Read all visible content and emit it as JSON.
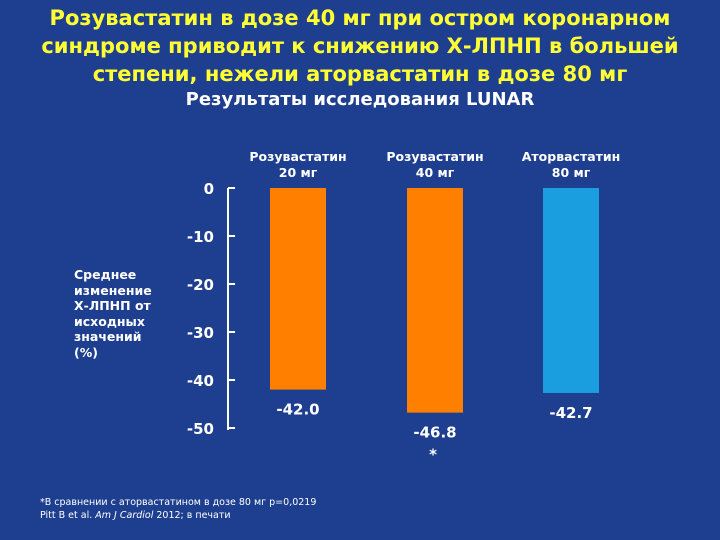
{
  "slide": {
    "title_lines": [
      "Розувастатин в дозе 40 мг при остром коронарном",
      "синдроме приводит к снижению Х-ЛПНП в большей",
      "степени, нежели аторвастатин в дозе 80 мг"
    ],
    "subtitle": "Результаты исследования LUNAR",
    "footnote": {
      "line1": "*В сравнении с аторвастатином в дозе 80 мг p=0,0219",
      "line2_author": "Pitt B et al. ",
      "line2_journal": "Am J Cardiol",
      "line2_rest": " 2012; в печати"
    }
  },
  "chart_data": {
    "type": "bar",
    "title": "Результаты исследования LUNAR",
    "ylabel_lines": [
      "Среднее",
      "изменение",
      "Х-ЛПНП от",
      "исходных",
      "значений",
      "(%)"
    ],
    "ylim": [
      -50,
      0
    ],
    "yticks": [
      0,
      -10,
      -20,
      -30,
      -40,
      -50
    ],
    "ytick_labels": [
      "0",
      "-10",
      "-20",
      "-30",
      "-40",
      "-50"
    ],
    "grid": false,
    "bars": [
      {
        "label_lines": [
          "Розувастатин",
          "20 мг"
        ],
        "value": -42.0,
        "value_label": "-42.0",
        "color": "#ff8000",
        "mark": ""
      },
      {
        "label_lines": [
          "Розувастатин",
          "40 мг"
        ],
        "value": -46.8,
        "value_label": "-46.8",
        "color": "#ff8000",
        "mark": "*"
      },
      {
        "label_lines": [
          "Аторвастатин",
          "80 мг"
        ],
        "value": -42.7,
        "value_label": "-42.7",
        "color": "#1a9ee0",
        "mark": ""
      }
    ],
    "colors": {
      "axis": "#ffffff",
      "text": "#ffffff",
      "title": "#ffff33",
      "background": "#1e3f8f"
    }
  }
}
